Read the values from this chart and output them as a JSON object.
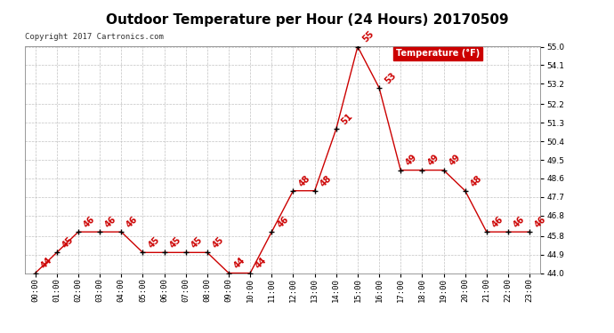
{
  "title": "Outdoor Temperature per Hour (24 Hours) 20170509",
  "copyright_text": "Copyright 2017 Cartronics.com",
  "legend_label": "Temperature (°F)",
  "hours": [
    "00:00",
    "01:00",
    "02:00",
    "03:00",
    "04:00",
    "05:00",
    "06:00",
    "07:00",
    "08:00",
    "09:00",
    "10:00",
    "11:00",
    "12:00",
    "13:00",
    "14:00",
    "15:00",
    "16:00",
    "17:00",
    "18:00",
    "19:00",
    "20:00",
    "21:00",
    "22:00",
    "23:00"
  ],
  "temperatures": [
    44,
    45,
    46,
    46,
    46,
    45,
    45,
    45,
    45,
    44,
    44,
    46,
    48,
    48,
    51,
    55,
    53,
    49,
    49,
    49,
    48,
    46,
    46,
    46
  ],
  "line_color": "#cc0000",
  "marker_color": "#000000",
  "label_color": "#cc0000",
  "background_color": "#ffffff",
  "grid_color": "#bbbbbb",
  "ylim_min": 44.0,
  "ylim_max": 55.0,
  "yticks": [
    44.0,
    44.9,
    45.8,
    46.8,
    47.7,
    48.6,
    49.5,
    50.4,
    51.3,
    52.2,
    53.2,
    54.1,
    55.0
  ],
  "title_fontsize": 11,
  "label_fontsize": 7,
  "tick_fontsize": 6.5,
  "copyright_fontsize": 6.5,
  "legend_fontsize": 7
}
